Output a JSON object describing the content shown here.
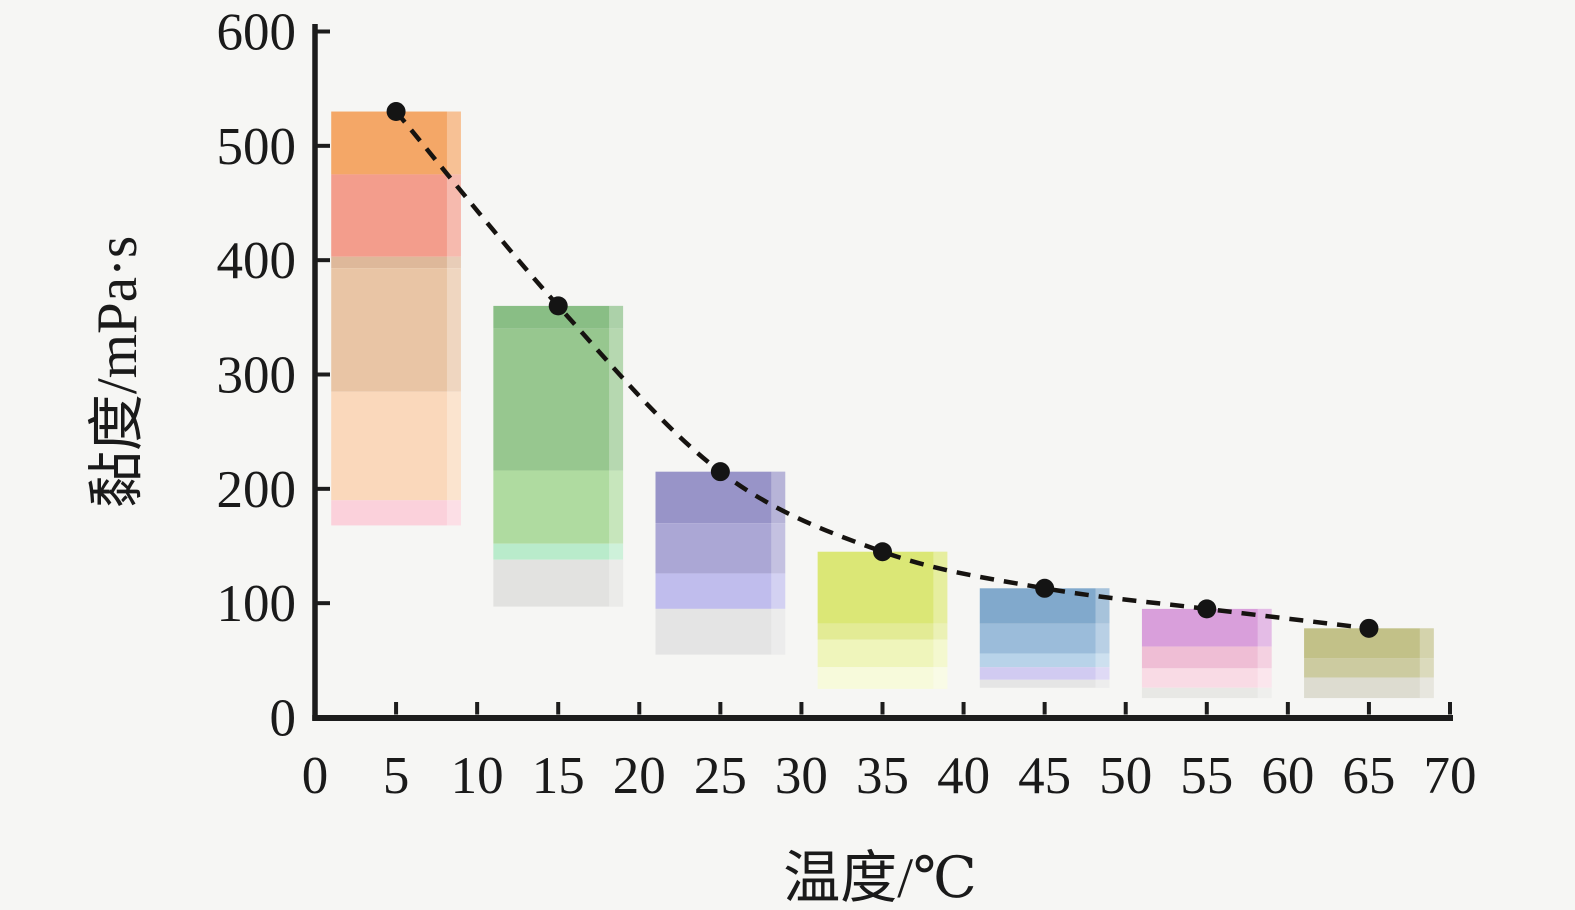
{
  "figure": {
    "background": "#f6f6f4",
    "text_color": "#1a1a1a",
    "axis_color": "#1c1c1c"
  },
  "chart_data": {
    "type": "bar",
    "title": "",
    "xlabel": "温度/℃",
    "ylabel": "黏度/mPa·s",
    "xlim": [
      0,
      70
    ],
    "ylim": [
      0,
      600
    ],
    "x_ticks": [
      0,
      5,
      10,
      15,
      20,
      25,
      30,
      35,
      40,
      45,
      50,
      55,
      60,
      65,
      70
    ],
    "y_ticks": [
      0,
      100,
      200,
      300,
      400,
      500,
      600
    ],
    "grid": false,
    "legend_position": "none",
    "categories": [
      5,
      15,
      25,
      35,
      45,
      55,
      65
    ],
    "values": [
      530,
      360,
      215,
      145,
      113,
      95,
      78
    ],
    "line": {
      "name": "viscosity-trend",
      "style": "dashed",
      "color": "#161310",
      "dash": "14 10",
      "stroke_width": 4.5,
      "marker": "filled-circle",
      "marker_color": "#141414",
      "marker_radius": 9.5,
      "points": [
        [
          5,
          530
        ],
        [
          15,
          360
        ],
        [
          25,
          215
        ],
        [
          35,
          145
        ],
        [
          45,
          113
        ],
        [
          55,
          95
        ],
        [
          65,
          78
        ]
      ]
    },
    "bar_width_units": 8,
    "bars": [
      {
        "x": 5,
        "top": 530,
        "segments": [
          {
            "from": 475,
            "to": 530,
            "color": "#F4A767"
          },
          {
            "from": 403,
            "to": 475,
            "color": "#F39D8C"
          },
          {
            "from": 393,
            "to": 403,
            "color": "#DEB89A"
          },
          {
            "from": 285,
            "to": 393,
            "color": "#E9C5A5"
          },
          {
            "from": 190,
            "to": 285,
            "color": "#FAD8BB"
          },
          {
            "from": 168,
            "to": 190,
            "color": "#FBD1DB"
          }
        ]
      },
      {
        "x": 15,
        "top": 360,
        "segments": [
          {
            "from": 340,
            "to": 360,
            "color": "#89BE85"
          },
          {
            "from": 216,
            "to": 340,
            "color": "#97C78F"
          },
          {
            "from": 152,
            "to": 216,
            "color": "#AFDBA0"
          },
          {
            "from": 138,
            "to": 152,
            "color": "#B9EBCB"
          },
          {
            "from": 97,
            "to": 138,
            "color": "#E2E2E0"
          }
        ]
      },
      {
        "x": 25,
        "top": 215,
        "segments": [
          {
            "from": 170,
            "to": 215,
            "color": "#9894C8"
          },
          {
            "from": 126,
            "to": 170,
            "color": "#ABA7D5"
          },
          {
            "from": 95,
            "to": 126,
            "color": "#C0BDED"
          },
          {
            "from": 55,
            "to": 95,
            "color": "#E4E4E4"
          }
        ]
      },
      {
        "x": 35,
        "top": 145,
        "segments": [
          {
            "from": 82,
            "to": 145,
            "color": "#DBE776"
          },
          {
            "from": 68,
            "to": 82,
            "color": "#E3EB95"
          },
          {
            "from": 44,
            "to": 68,
            "color": "#EFF5BB"
          },
          {
            "from": 25,
            "to": 44,
            "color": "#F7FADB"
          }
        ]
      },
      {
        "x": 45,
        "top": 113,
        "segments": [
          {
            "from": 82,
            "to": 113,
            "color": "#81A9CC"
          },
          {
            "from": 56,
            "to": 82,
            "color": "#9BBCDA"
          },
          {
            "from": 44,
            "to": 56,
            "color": "#B8D3E9"
          },
          {
            "from": 33,
            "to": 44,
            "color": "#D1CBF1"
          },
          {
            "from": 26,
            "to": 33,
            "color": "#E5E5E5"
          }
        ]
      },
      {
        "x": 55,
        "top": 95,
        "segments": [
          {
            "from": 62,
            "to": 95,
            "color": "#D99FDB"
          },
          {
            "from": 43,
            "to": 62,
            "color": "#EFBED5"
          },
          {
            "from": 26,
            "to": 43,
            "color": "#F9DBE5"
          },
          {
            "from": 17,
            "to": 26,
            "color": "#E8E8E5"
          }
        ]
      },
      {
        "x": 65,
        "top": 78,
        "segments": [
          {
            "from": 52,
            "to": 78,
            "color": "#C2C188"
          },
          {
            "from": 35,
            "to": 52,
            "color": "#CCCBA0"
          },
          {
            "from": 17,
            "to": 35,
            "color": "#DDDCD0"
          }
        ]
      }
    ]
  }
}
